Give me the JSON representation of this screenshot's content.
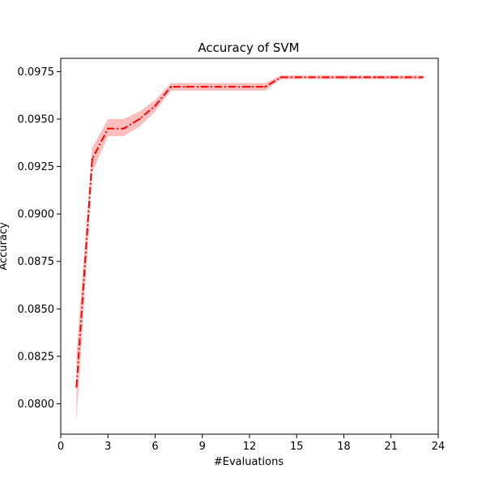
{
  "chart_data": {
    "type": "line",
    "title": "Accuracy of SVM",
    "xlabel": "#Evaluations",
    "ylabel": "Accuracy",
    "xlim": [
      0,
      24
    ],
    "ylim": [
      0.0784,
      0.0982
    ],
    "xticks": [
      0,
      3,
      6,
      9,
      12,
      15,
      18,
      21,
      24
    ],
    "yticks": [
      0.08,
      0.0825,
      0.085,
      0.0875,
      0.09,
      0.0925,
      0.095,
      0.0975
    ],
    "ytick_labels": [
      "0.0800",
      "0.0825",
      "0.0850",
      "0.0875",
      "0.0900",
      "0.0925",
      "0.0950",
      "0.0975"
    ],
    "grid": false,
    "series": [
      {
        "color": "#ff0000",
        "band_color": "#ffb3b3",
        "line_style": "dash-dot",
        "x": [
          1,
          2,
          3,
          4,
          5,
          6,
          7,
          8,
          9,
          10,
          11,
          12,
          13,
          14,
          15,
          16,
          17,
          18,
          19,
          20,
          21,
          22,
          23
        ],
        "y": [
          0.0809,
          0.0929,
          0.0945,
          0.0945,
          0.095,
          0.0957,
          0.0967,
          0.0967,
          0.0967,
          0.0967,
          0.0967,
          0.0967,
          0.0967,
          0.0972,
          0.0972,
          0.0972,
          0.0972,
          0.0972,
          0.0972,
          0.0972,
          0.0972,
          0.0972,
          0.0972
        ],
        "lower": [
          0.0791,
          0.0922,
          0.0941,
          0.0941,
          0.0946,
          0.0954,
          0.0965,
          0.0965,
          0.0965,
          0.0965,
          0.0965,
          0.0965,
          0.0965,
          0.0971,
          0.0971,
          0.0971,
          0.0971,
          0.0971,
          0.0971,
          0.0971,
          0.0971,
          0.0971,
          0.0971
        ],
        "upper": [
          0.0827,
          0.0935,
          0.095,
          0.095,
          0.0954,
          0.096,
          0.0969,
          0.0969,
          0.0969,
          0.0969,
          0.0969,
          0.0969,
          0.0969,
          0.0973,
          0.0973,
          0.0973,
          0.0973,
          0.0973,
          0.0973,
          0.0973,
          0.0973,
          0.0973,
          0.0973
        ]
      }
    ]
  }
}
